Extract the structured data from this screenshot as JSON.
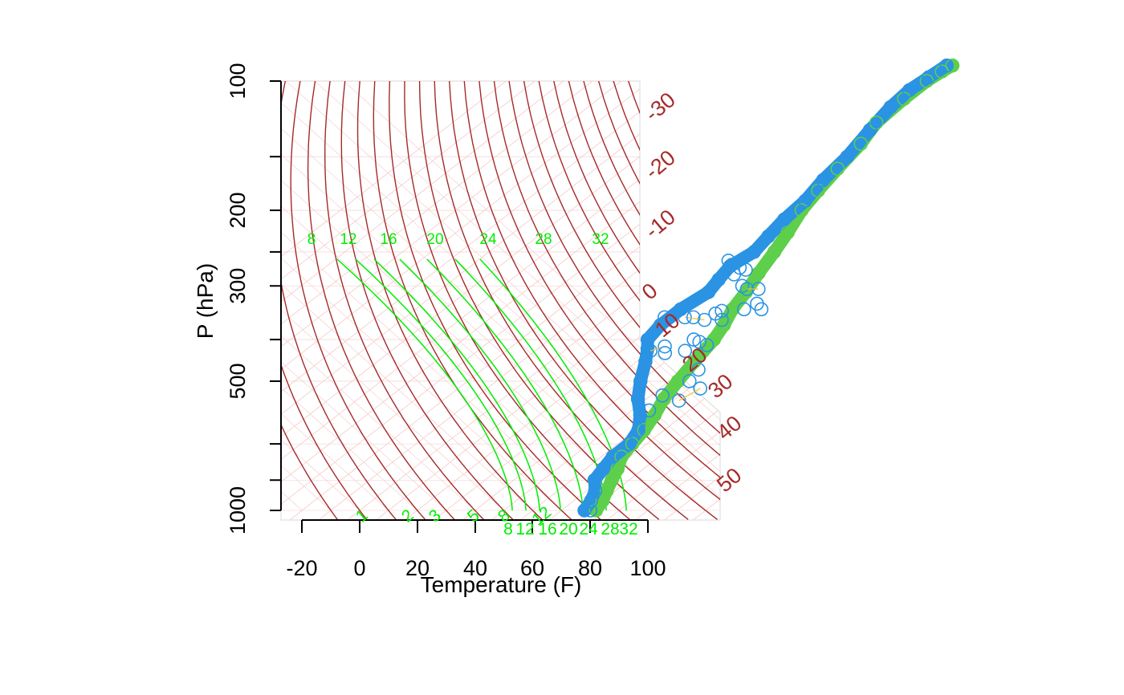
{
  "colors": {
    "dry_adiabat": "#a52a2a",
    "moist_adiabat": "#00ee00",
    "mixing_ratio": "#00ee00",
    "grid": "#f5c8c8",
    "dewpoint": "#2a93e3",
    "temperature": "#5ecf4a",
    "wind_line": "#f3c53a",
    "axis": "#000000"
  },
  "chart_data": {
    "type": "scatter",
    "subtype": "skew-t log-p sounding",
    "xlabel": "Temperature (F)",
    "ylabel": "P (hPa)",
    "x_ticks": [
      -20,
      0,
      20,
      40,
      60,
      80,
      100
    ],
    "x_tick_labels": [
      "-20",
      "0",
      "20",
      "40",
      "60",
      "80",
      "100"
    ],
    "y_ticks": [
      100,
      200,
      300,
      500,
      1000
    ],
    "y_tick_labels": [
      "100",
      "200",
      "300",
      "500",
      "1000"
    ],
    "y_minor_ticks": [
      150,
      250,
      400,
      700,
      850
    ],
    "y_scale": "log",
    "y_range": [
      1050,
      100
    ],
    "dry_adiabat_labels": [
      "-30",
      "-20",
      "-10",
      "0",
      "10",
      "20",
      "30",
      "40",
      "50"
    ],
    "mixing_ratio_labels_top": [
      "8",
      "12",
      "16",
      "20",
      "24",
      "28",
      "32"
    ],
    "mixing_ratio_labels_bottom": [
      "8",
      "12",
      "16",
      "20",
      "24",
      "28",
      "32"
    ],
    "moist_adiabat_labels": [
      "1",
      "2",
      "3",
      "5",
      "8",
      "12"
    ],
    "series": [
      {
        "name": "",
        "role": "temperature",
        "points": [
          [
            82,
            1000
          ],
          [
            80,
            950
          ],
          [
            77,
            900
          ],
          [
            74,
            850
          ],
          [
            71,
            800
          ],
          [
            67,
            750
          ],
          [
            65,
            700
          ],
          [
            63,
            650
          ],
          [
            60,
            600
          ],
          [
            56,
            550
          ],
          [
            53,
            500
          ],
          [
            50,
            450
          ],
          [
            47,
            400
          ],
          [
            44,
            370
          ],
          [
            40,
            340
          ],
          [
            37,
            310
          ],
          [
            33,
            280
          ],
          [
            29,
            250
          ],
          [
            25,
            225
          ],
          [
            20,
            200
          ],
          [
            17,
            180
          ],
          [
            14,
            160
          ],
          [
            11,
            140
          ],
          [
            7,
            125
          ],
          [
            6,
            110
          ],
          [
            6,
            100
          ],
          [
            7,
            95
          ],
          [
            8,
            92
          ]
        ]
      },
      {
        "name": "",
        "role": "dewpoint",
        "points": [
          [
            78,
            1000
          ],
          [
            76,
            950
          ],
          [
            73,
            900
          ],
          [
            68,
            850
          ],
          [
            66,
            800
          ],
          [
            64,
            750
          ],
          [
            64,
            700
          ],
          [
            61,
            650
          ],
          [
            55,
            600
          ],
          [
            47,
            550
          ],
          [
            40,
            500
          ],
          [
            33,
            450
          ],
          [
            28,
            420
          ],
          [
            24,
            400
          ],
          [
            22,
            370
          ],
          [
            22,
            340
          ],
          [
            24,
            310
          ],
          [
            22,
            290
          ],
          [
            20,
            270
          ],
          [
            22,
            250
          ],
          [
            20,
            230
          ],
          [
            18,
            210
          ],
          [
            17,
            190
          ],
          [
            14,
            170
          ],
          [
            12,
            150
          ],
          [
            8,
            130
          ],
          [
            5,
            115
          ],
          [
            4,
            105
          ],
          [
            5,
            98
          ],
          [
            6,
            92
          ]
        ]
      },
      {
        "name": "",
        "role": "dewpoint-scatter",
        "points": [
          [
            17,
            262
          ],
          [
            20,
            268
          ],
          [
            24,
            272
          ],
          [
            27,
            275
          ],
          [
            25,
            282
          ],
          [
            33,
            300
          ],
          [
            36,
            305
          ],
          [
            40,
            305
          ],
          [
            46,
            330
          ],
          [
            44,
            340
          ],
          [
            37,
            343
          ],
          [
            36,
            348
          ],
          [
            20,
            355
          ],
          [
            27,
            355
          ],
          [
            35,
            360
          ],
          [
            41,
            360
          ],
          [
            30,
            355
          ],
          [
            40,
            400
          ],
          [
            43,
            405
          ],
          [
            47,
            412
          ],
          [
            33,
            415
          ],
          [
            30,
            425
          ],
          [
            36,
            430
          ],
          [
            42,
            425
          ],
          [
            50,
            340
          ],
          [
            55,
            470
          ],
          [
            57,
            500
          ],
          [
            64,
            520
          ],
          [
            62,
            555
          ],
          [
            54,
            540
          ],
          [
            56,
            585
          ],
          [
            80,
            1000
          ]
        ]
      }
    ]
  }
}
